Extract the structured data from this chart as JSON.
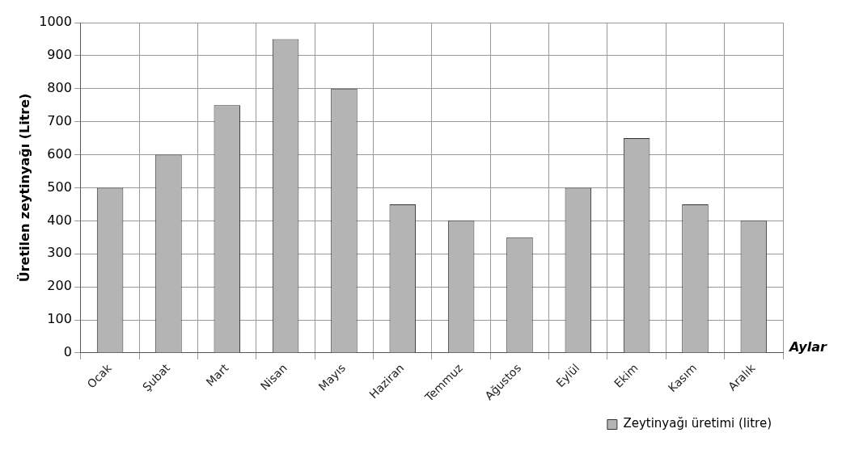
{
  "chart_data": {
    "type": "bar",
    "xlabel": "Aylar",
    "ylabel": "Üretilen zeytinyağı (Litre)",
    "categories": [
      "Ocak",
      "Şubat",
      "Mart",
      "Nisan",
      "Mayıs",
      "Haziran",
      "Temmuz",
      "Ağustos",
      "Eylül",
      "Ekim",
      "Kasım",
      "Aralık"
    ],
    "series": [
      {
        "name": "Zeytinyağı üretimi (litre)",
        "color": "#b4b4b4",
        "values": [
          500,
          600,
          750,
          950,
          800,
          450,
          400,
          350,
          500,
          650,
          450,
          400
        ]
      }
    ],
    "ylim": [
      0,
      1000
    ],
    "yticks": [
      0,
      100,
      200,
      300,
      400,
      500,
      600,
      700,
      800,
      900,
      1000
    ],
    "grid": true,
    "legend": "bottom right"
  }
}
